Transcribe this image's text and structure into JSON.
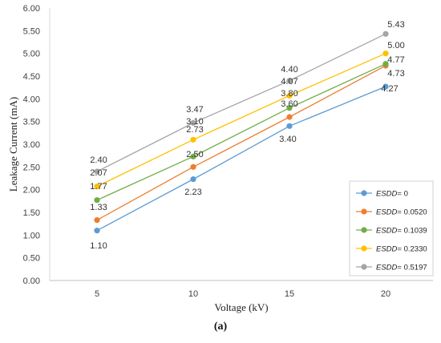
{
  "caption": "(a)",
  "chart_data": {
    "type": "line",
    "title": "",
    "xlabel": "Voltage (kV)",
    "ylabel": "Leakage Current (mA)",
    "categories": [
      "5",
      "10",
      "15",
      "20"
    ],
    "ylim": [
      0,
      6
    ],
    "ytick_labels": [
      "0.00",
      "0.50",
      "1.00",
      "1.50",
      "2.00",
      "2.50",
      "3.00",
      "3.50",
      "4.00",
      "4.50",
      "5.00",
      "5.50",
      "6.00"
    ],
    "grid": false,
    "legend_position": "right",
    "legend_prefix": "ESDD",
    "series": [
      {
        "name": "= 0",
        "color": "#5b9bd5",
        "values": [
          1.1,
          2.23,
          3.4,
          4.27
        ],
        "labels": [
          "1.10",
          "2.23",
          "3.40",
          "4.27"
        ]
      },
      {
        "name": "= 0.0520",
        "color": "#ed7d31",
        "values": [
          1.33,
          2.5,
          3.6,
          4.73
        ],
        "labels": [
          "1.33",
          "2.50",
          "3.60",
          "4.73"
        ]
      },
      {
        "name": "= 0.1039",
        "color": "#70ad47",
        "values": [
          1.77,
          2.73,
          3.8,
          4.77
        ],
        "labels": [
          "1.77",
          "2.73",
          "3.80",
          "4.77"
        ]
      },
      {
        "name": "= 0.2330",
        "color": "#ffc000",
        "values": [
          2.07,
          3.1,
          4.07,
          5.0
        ],
        "labels": [
          "2.07",
          "3.10",
          "4.07",
          "5.00"
        ]
      },
      {
        "name": "= 0.5197",
        "color": "#a5a5a5",
        "values": [
          2.4,
          3.47,
          4.4,
          5.43
        ],
        "labels": [
          "2.40",
          "3.47",
          "4.40",
          "5.43"
        ]
      }
    ]
  }
}
